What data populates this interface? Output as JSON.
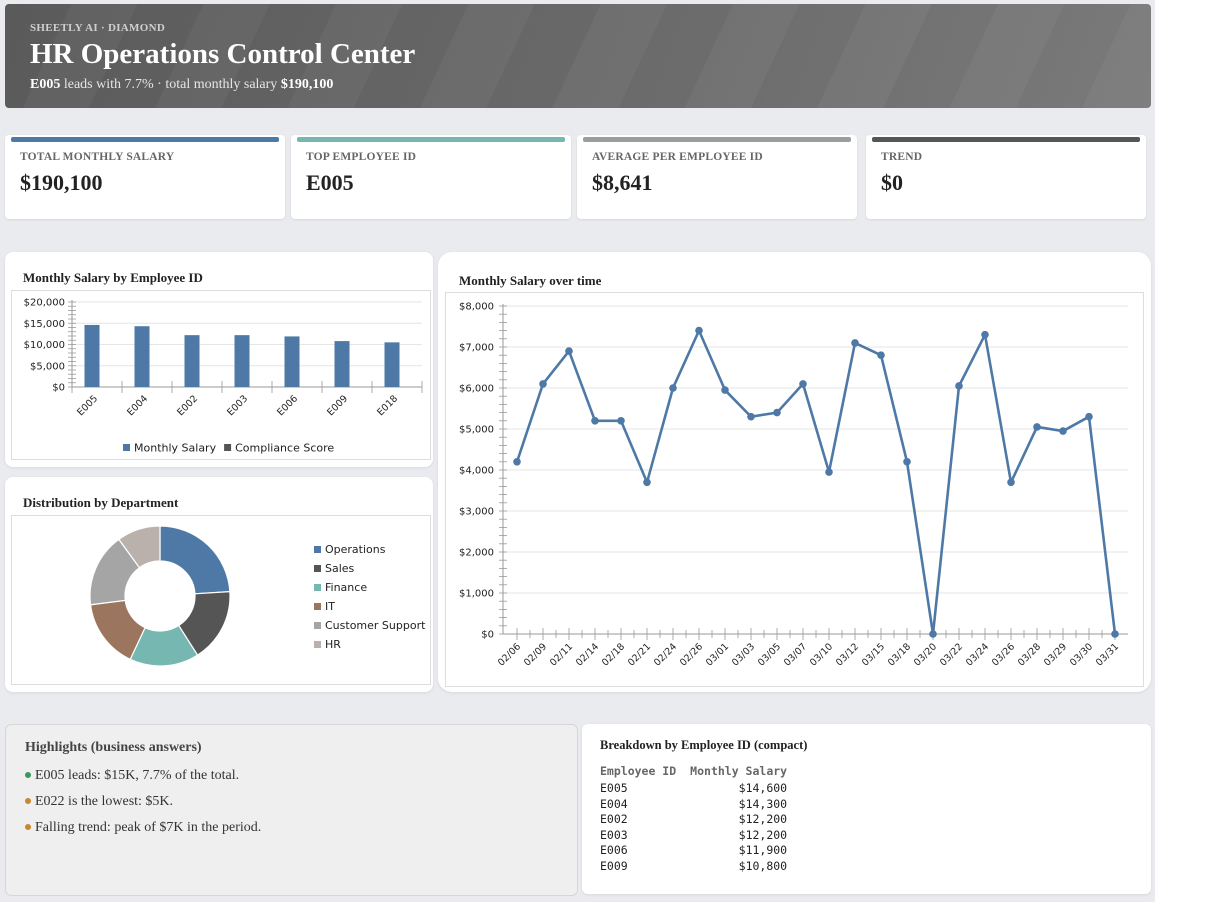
{
  "header": {
    "brand": "SHEETLY AI · DIAMOND",
    "title": "HR Operations Control Center",
    "subtitle_lead": "E005",
    "subtitle_mid": " leads with 7.7% · total monthly salary ",
    "subtitle_total": "$190,100"
  },
  "kpis": [
    {
      "label": "TOTAL MONTHLY SALARY",
      "value": "$190,100",
      "color": "#4e79a7"
    },
    {
      "label": "TOP EMPLOYEE ID",
      "value": "E005",
      "color": "#76b7b2"
    },
    {
      "label": "AVERAGE PER EMPLOYEE ID",
      "value": "$8,641",
      "color": "#9c9c9c"
    },
    {
      "label": "TREND",
      "value": "$0",
      "color": "#555555"
    }
  ],
  "bar_card": {
    "title": "Monthly Salary by Employee ID"
  },
  "pie_card": {
    "title": "Distribution by Department"
  },
  "line_card": {
    "title": "Monthly Salary over time"
  },
  "chart_data": [
    {
      "type": "bar",
      "title": "Monthly Salary by Employee ID",
      "categories": [
        "E005",
        "E004",
        "E002",
        "E003",
        "E006",
        "E009",
        "E018"
      ],
      "series": [
        {
          "name": "Monthly Salary",
          "values": [
            14600,
            14300,
            12200,
            12200,
            11900,
            10800,
            10500
          ],
          "color": "#4e79a7"
        },
        {
          "name": "Compliance Score",
          "values": [
            0,
            0,
            0,
            0,
            0,
            0,
            0
          ],
          "color": "#555555"
        }
      ],
      "yticks": [
        "$0",
        "$5,000",
        "$10,000",
        "$15,000",
        "$20,000"
      ],
      "ylim": [
        0,
        20000
      ],
      "legend": "bottom"
    },
    {
      "type": "pie",
      "title": "Distribution by Department",
      "labels": [
        "Operations",
        "Sales",
        "Finance",
        "IT",
        "Customer Support",
        "HR"
      ],
      "values": [
        24,
        17,
        16,
        16,
        17,
        10
      ],
      "colors": [
        "#4e79a7",
        "#555555",
        "#76b7b2",
        "#9c755f",
        "#a5a5a5",
        "#bab0ac"
      ],
      "legend": "right"
    },
    {
      "type": "line",
      "title": "Monthly Salary over time",
      "x": [
        "02/06",
        "02/09",
        "02/11",
        "02/14",
        "02/18",
        "02/21",
        "02/24",
        "02/26",
        "03/01",
        "03/03",
        "03/05",
        "03/07",
        "03/10",
        "03/12",
        "03/15",
        "03/18",
        "03/20",
        "03/22",
        "03/24",
        "03/26",
        "03/28",
        "03/29",
        "03/30",
        "03/31"
      ],
      "series": [
        {
          "values": [
            4200,
            6100,
            6900,
            5200,
            5200,
            3700,
            6000,
            7400,
            5950,
            5300,
            5400,
            6100,
            3950,
            7100,
            6800,
            4200,
            0,
            6050,
            7300,
            3700,
            5050,
            4950,
            5300,
            0
          ],
          "color": "#4e79a7"
        }
      ],
      "yticks": [
        "$0",
        "$1,000",
        "$2,000",
        "$3,000",
        "$4,000",
        "$5,000",
        "$6,000",
        "$7,000",
        "$8,000"
      ],
      "ylim": [
        0,
        8000
      ]
    }
  ],
  "highlights": {
    "title": "Highlights (business answers)",
    "items": [
      {
        "text": "E005 leads: $15K, 7.7% of the total.",
        "color": "#3a9a5b"
      },
      {
        "text": "E022 is the lowest: $5K.",
        "color": "#c9862f"
      },
      {
        "text": "Falling trend: peak of $7K in the period.",
        "color": "#c9862f"
      }
    ]
  },
  "breakdown": {
    "title": "Breakdown by Employee ID (compact)",
    "headers": [
      "Employee ID",
      "Monthly Salary"
    ],
    "rows": [
      [
        "E005",
        "$14,600"
      ],
      [
        "E004",
        "$14,300"
      ],
      [
        "E002",
        "$12,200"
      ],
      [
        "E003",
        "$12,200"
      ],
      [
        "E006",
        "$11,900"
      ],
      [
        "E009",
        "$10,800"
      ]
    ]
  }
}
